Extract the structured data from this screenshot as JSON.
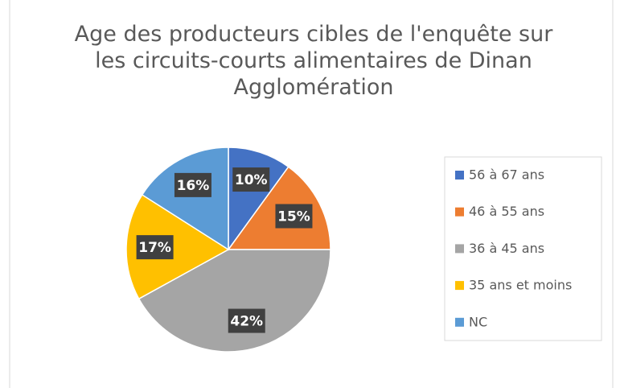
{
  "chart_data": {
    "type": "pie",
    "title": "Age des producteurs cibles de l'enquête sur les circuits-courts alimentaires de Dinan Agglomération",
    "categories": [
      "56 à 67 ans",
      "46 à 55 ans",
      "36 à 45 ans",
      "35 ans et moins",
      "NC"
    ],
    "values": [
      10,
      15,
      42,
      17,
      16
    ],
    "value_labels": [
      "10%",
      "15%",
      "42%",
      "17%",
      "16%"
    ],
    "colors": [
      "#4472c4",
      "#ed7d31",
      "#a5a5a5",
      "#ffc000",
      "#5b9bd5"
    ],
    "legend": "right"
  }
}
